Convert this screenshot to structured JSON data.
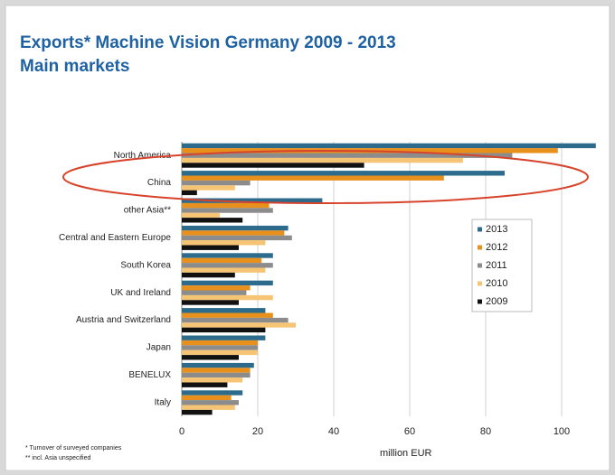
{
  "chart_data": {
    "type": "bar",
    "orientation": "horizontal",
    "title": "Exports* Machine Vision Germany 2009 - 2013",
    "subtitle": "Main markets",
    "x_label": "million EUR",
    "footnotes": [
      "* Turnover of surveyed companies",
      "** incl. Asia unspecified"
    ],
    "categories": [
      "North America",
      "China",
      "other Asia**",
      "Central and Eastern Europe",
      "South Korea",
      "UK and Ireland",
      "Austria and Switzerland",
      "Japan",
      "BENELUX",
      "Italy"
    ],
    "series": [
      {
        "name": "2013",
        "color": "#2c6b8c",
        "values": [
          109,
          85,
          37,
          28,
          24,
          24,
          22,
          22,
          19,
          16
        ]
      },
      {
        "name": "2012",
        "color": "#e8901c",
        "values": [
          99,
          69,
          23,
          27,
          21,
          18,
          24,
          20,
          18,
          13
        ]
      },
      {
        "name": "2011",
        "color": "#8c8c8c",
        "values": [
          87,
          18,
          24,
          29,
          24,
          17,
          28,
          20,
          18,
          15
        ]
      },
      {
        "name": "2010",
        "color": "#f6c475",
        "values": [
          74,
          14,
          10,
          22,
          22,
          24,
          30,
          20,
          16,
          14
        ]
      },
      {
        "name": "2009",
        "color": "#111111",
        "values": [
          48,
          4,
          16,
          15,
          14,
          15,
          22,
          15,
          12,
          8
        ]
      }
    ],
    "xlim": [
      0,
      110
    ],
    "xticks": [
      0,
      20,
      40,
      60,
      80,
      100
    ],
    "grid": true,
    "legend": "right"
  }
}
